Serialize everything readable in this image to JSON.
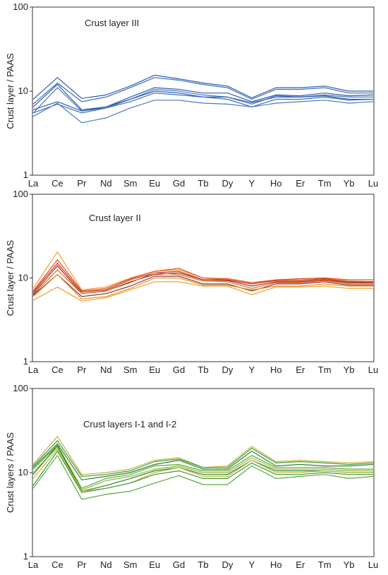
{
  "chart_data": [
    {
      "type": "line",
      "title": "Crust layer III",
      "ylabel": "Crust layer / PAAS",
      "yscale": "log",
      "ylim": [
        1,
        100
      ],
      "yticks": [
        "1",
        "10",
        "100"
      ],
      "reference_line": 1,
      "categories": [
        "La",
        "Ce",
        "Pr",
        "Nd",
        "Sm",
        "Eu",
        "Gd",
        "Tb",
        "Dy",
        "Y",
        "Ho",
        "Er",
        "Tm",
        "Yb",
        "Lu"
      ],
      "series": [
        {
          "color": "#2f5fae",
          "values": [
            8.0,
            14.5,
            8.2,
            9.0,
            11.5,
            15.5,
            14.0,
            12.5,
            11.5,
            8.3,
            11.0,
            11.0,
            11.5,
            10.0,
            10.0
          ]
        },
        {
          "color": "#3a6cbb",
          "values": [
            7.0,
            12.5,
            7.5,
            8.5,
            11.0,
            14.5,
            13.5,
            12.0,
            11.0,
            8.0,
            10.5,
            10.5,
            11.0,
            9.5,
            9.5
          ]
        },
        {
          "color": "#2f5fae",
          "values": [
            6.5,
            12.0,
            6.0,
            6.5,
            8.5,
            11.0,
            10.5,
            9.5,
            9.5,
            7.5,
            9.0,
            8.8,
            9.5,
            8.8,
            9.0
          ]
        },
        {
          "color": "#4a78c2",
          "values": [
            5.5,
            11.0,
            5.8,
            6.3,
            8.0,
            10.5,
            10.0,
            9.0,
            8.5,
            7.0,
            8.8,
            8.5,
            9.0,
            8.5,
            8.5
          ]
        },
        {
          "color": "#2f5fae",
          "values": [
            6.0,
            7.5,
            5.8,
            6.5,
            8.0,
            10.0,
            9.5,
            8.5,
            8.5,
            7.3,
            8.5,
            8.5,
            8.8,
            8.0,
            8.0
          ]
        },
        {
          "color": "#3a6cbb",
          "values": [
            5.5,
            7.0,
            5.5,
            6.3,
            7.5,
            9.5,
            9.0,
            8.5,
            8.0,
            6.5,
            8.0,
            8.0,
            8.5,
            7.8,
            8.0
          ]
        },
        {
          "color": "#4a78c2",
          "values": [
            5.0,
            7.2,
            4.2,
            4.8,
            6.3,
            7.8,
            7.8,
            7.2,
            7.0,
            6.5,
            7.2,
            7.5,
            7.8,
            7.2,
            7.5
          ]
        }
      ]
    },
    {
      "type": "line",
      "title": "Crust layer II",
      "ylabel": "Crust layer / PAAS",
      "yscale": "log",
      "ylim": [
        1,
        100
      ],
      "yticks": [
        "1",
        "10",
        "100"
      ],
      "reference_line": 1,
      "categories": [
        "La",
        "Ce",
        "Pr",
        "Nd",
        "Sm",
        "Eu",
        "Gd",
        "Tb",
        "Dy",
        "Y",
        "Ho",
        "Er",
        "Tm",
        "Yb",
        "Lu"
      ],
      "series": [
        {
          "color": "#f0a030",
          "values": [
            7.5,
            20.5,
            7.2,
            7.8,
            10.0,
            12.0,
            12.5,
            10.0,
            9.5,
            8.5,
            9.5,
            9.5,
            9.8,
            9.2,
            9.0
          ]
        },
        {
          "color": "#e8501c",
          "values": [
            7.0,
            16.5,
            7.0,
            7.5,
            9.8,
            12.0,
            13.0,
            10.0,
            9.8,
            8.8,
            9.5,
            9.8,
            10.0,
            9.5,
            9.5
          ]
        },
        {
          "color": "#cc2f1a",
          "values": [
            6.8,
            15.0,
            6.8,
            7.2,
            9.5,
            11.5,
            12.0,
            9.5,
            9.5,
            8.5,
            9.3,
            9.3,
            9.8,
            9.0,
            9.0
          ]
        },
        {
          "color": "#a5281a",
          "values": [
            6.5,
            14.0,
            6.5,
            7.0,
            9.0,
            11.0,
            11.5,
            9.5,
            9.3,
            8.0,
            9.0,
            9.0,
            9.5,
            8.8,
            8.8
          ]
        },
        {
          "color": "#d8661e",
          "values": [
            6.3,
            12.5,
            6.5,
            7.0,
            8.8,
            11.5,
            11.0,
            9.2,
            9.0,
            7.5,
            8.8,
            8.8,
            9.3,
            8.5,
            8.5
          ]
        },
        {
          "color": "#7a3a2a",
          "values": [
            6.2,
            11.0,
            6.0,
            6.5,
            8.0,
            10.5,
            10.5,
            8.5,
            8.5,
            7.0,
            8.5,
            8.5,
            9.0,
            8.2,
            8.2
          ]
        },
        {
          "color": "#ef8a28",
          "values": [
            6.0,
            11.0,
            5.6,
            6.0,
            7.5,
            10.0,
            10.0,
            8.2,
            8.2,
            7.2,
            8.0,
            8.0,
            8.5,
            8.0,
            8.0
          ]
        },
        {
          "color": "#f0a030",
          "values": [
            5.4,
            7.8,
            5.3,
            5.8,
            7.2,
            9.0,
            9.0,
            8.0,
            8.0,
            6.3,
            7.8,
            7.8,
            8.0,
            7.5,
            7.5
          ]
        }
      ]
    },
    {
      "type": "line",
      "title": "Crust layers I-1 and I-2",
      "ylabel": "Crust layers / PAAS",
      "yscale": "log",
      "ylim": [
        1,
        100
      ],
      "yticks": [
        "1",
        "10",
        "100"
      ],
      "reference_line": 1,
      "categories": [
        "La",
        "Ce",
        "Pr",
        "Nd",
        "Sm",
        "Eu",
        "Gd",
        "Tb",
        "Dy",
        "Y",
        "Ho",
        "Er",
        "Tm",
        "Yb",
        "Lu"
      ],
      "series": [
        {
          "color": "#c8b43a",
          "values": [
            12.5,
            27.0,
            9.5,
            10.0,
            11.0,
            14.0,
            15.0,
            11.5,
            12.0,
            20.5,
            13.5,
            14.0,
            13.5,
            13.0,
            13.5
          ]
        },
        {
          "color": "#3e9a36",
          "values": [
            12.0,
            24.0,
            9.0,
            9.5,
            10.5,
            13.5,
            14.5,
            11.5,
            11.5,
            19.5,
            13.0,
            13.5,
            13.0,
            12.5,
            13.0
          ]
        },
        {
          "color": "#2f7f2a",
          "values": [
            11.5,
            22.0,
            8.2,
            9.0,
            10.0,
            12.5,
            14.0,
            11.0,
            11.0,
            18.0,
            12.0,
            12.5,
            12.0,
            12.0,
            12.5
          ]
        },
        {
          "color": "#5aaa3a",
          "values": [
            11.0,
            21.0,
            6.5,
            8.5,
            9.5,
            12.0,
            12.5,
            10.5,
            10.5,
            16.0,
            11.5,
            11.5,
            11.5,
            11.0,
            11.0
          ]
        },
        {
          "color": "#8ab83a",
          "values": [
            10.0,
            20.0,
            6.2,
            8.0,
            9.0,
            11.0,
            12.0,
            10.0,
            10.0,
            15.0,
            11.0,
            11.0,
            11.0,
            10.5,
            10.5
          ]
        },
        {
          "color": "#2f7f2a",
          "values": [
            9.5,
            21.0,
            6.0,
            7.0,
            8.5,
            10.5,
            11.5,
            9.5,
            9.5,
            14.0,
            10.5,
            10.5,
            10.5,
            10.0,
            10.0
          ]
        },
        {
          "color": "#c8b43a",
          "values": [
            8.5,
            19.0,
            6.0,
            6.5,
            7.5,
            10.0,
            11.5,
            9.0,
            9.0,
            14.0,
            10.0,
            10.0,
            10.5,
            10.0,
            10.0
          ]
        },
        {
          "color": "#3e9a36",
          "values": [
            7.0,
            18.0,
            5.8,
            6.5,
            7.5,
            9.5,
            10.5,
            8.5,
            8.5,
            13.0,
            9.5,
            9.5,
            10.0,
            9.5,
            9.5
          ]
        },
        {
          "color": "#5aaa3a",
          "values": [
            6.5,
            16.0,
            4.8,
            5.5,
            6.0,
            7.5,
            9.2,
            7.2,
            7.2,
            12.0,
            8.5,
            9.0,
            9.5,
            8.5,
            9.0
          ]
        }
      ]
    }
  ]
}
